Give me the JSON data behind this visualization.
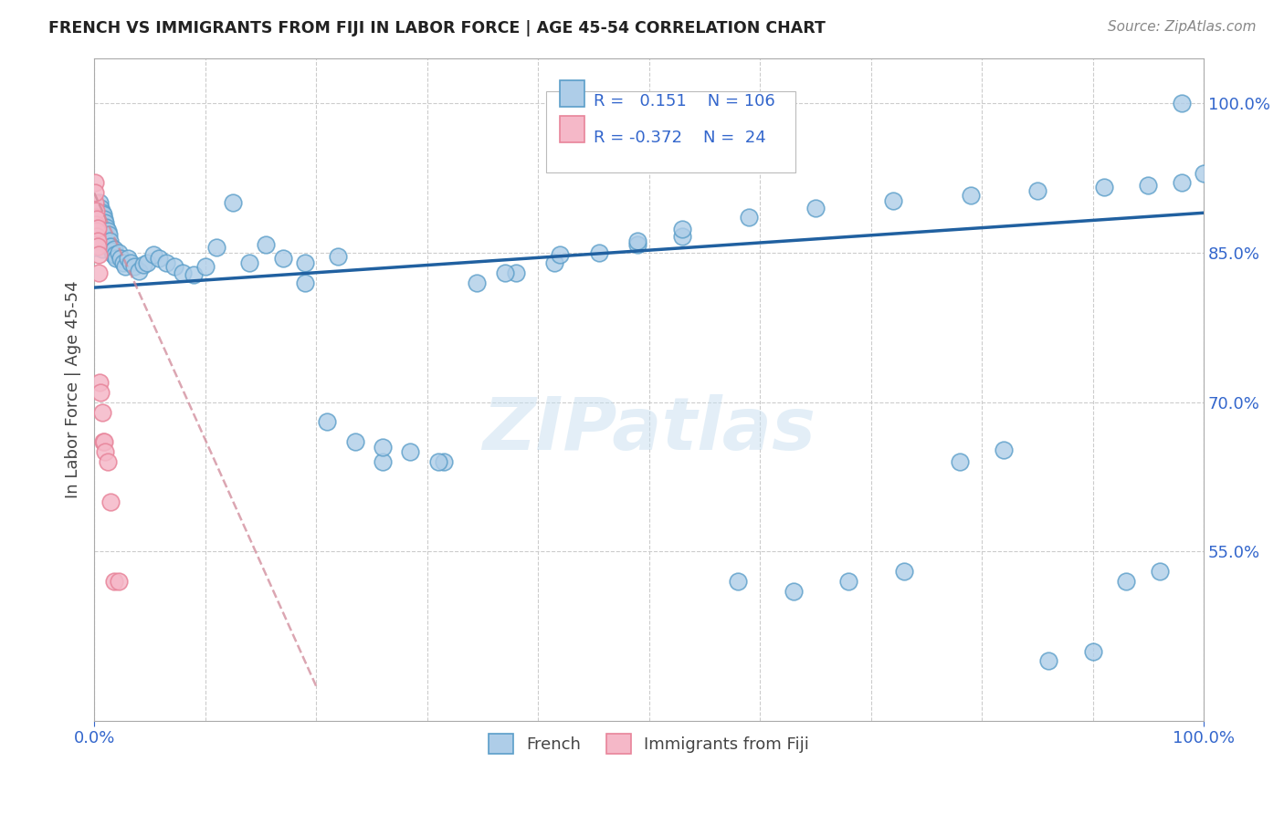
{
  "title": "FRENCH VS IMMIGRANTS FROM FIJI IN LABOR FORCE | AGE 45-54 CORRELATION CHART",
  "source": "Source: ZipAtlas.com",
  "ylabel": "In Labor Force | Age 45-54",
  "xlim": [
    0.0,
    1.0
  ],
  "ylim": [
    0.38,
    1.045
  ],
  "y_ticks_right": [
    0.55,
    0.7,
    0.85,
    1.0
  ],
  "y_tick_labels_right": [
    "55.0%",
    "70.0%",
    "85.0%",
    "100.0%"
  ],
  "legend_r_blue": "0.151",
  "legend_n_blue": "106",
  "legend_r_pink": "-0.372",
  "legend_n_pink": "24",
  "blue_fill": "#aecde8",
  "blue_edge": "#5b9ec9",
  "pink_fill": "#f5b8c8",
  "pink_edge": "#e8849a",
  "trend_blue_color": "#2060a0",
  "trend_pink_color": "#d08898",
  "watermark": "ZIPatlas",
  "french_x": [
    0.001,
    0.001,
    0.002,
    0.002,
    0.002,
    0.003,
    0.003,
    0.003,
    0.003,
    0.004,
    0.004,
    0.004,
    0.005,
    0.005,
    0.005,
    0.005,
    0.006,
    0.006,
    0.006,
    0.007,
    0.007,
    0.007,
    0.007,
    0.008,
    0.008,
    0.008,
    0.009,
    0.009,
    0.009,
    0.01,
    0.01,
    0.011,
    0.011,
    0.012,
    0.012,
    0.013,
    0.013,
    0.014,
    0.015,
    0.016,
    0.017,
    0.018,
    0.019,
    0.02,
    0.022,
    0.024,
    0.026,
    0.028,
    0.03,
    0.033,
    0.036,
    0.04,
    0.044,
    0.048,
    0.053,
    0.058,
    0.065,
    0.072,
    0.08,
    0.09,
    0.1,
    0.11,
    0.125,
    0.14,
    0.155,
    0.17,
    0.19,
    0.21,
    0.235,
    0.26,
    0.285,
    0.315,
    0.345,
    0.38,
    0.415,
    0.455,
    0.49,
    0.53,
    0.58,
    0.63,
    0.68,
    0.73,
    0.78,
    0.82,
    0.86,
    0.9,
    0.93,
    0.96,
    0.98,
    1.0,
    0.37,
    0.42,
    0.49,
    0.53,
    0.59,
    0.65,
    0.72,
    0.79,
    0.85,
    0.91,
    0.95,
    0.98,
    0.19,
    0.22,
    0.26,
    0.31
  ],
  "french_y": [
    0.87,
    0.855,
    0.89,
    0.875,
    0.86,
    0.895,
    0.882,
    0.87,
    0.858,
    0.892,
    0.878,
    0.864,
    0.9,
    0.886,
    0.874,
    0.862,
    0.895,
    0.882,
    0.87,
    0.89,
    0.878,
    0.866,
    0.854,
    0.888,
    0.876,
    0.862,
    0.884,
    0.872,
    0.86,
    0.88,
    0.868,
    0.876,
    0.864,
    0.872,
    0.86,
    0.868,
    0.856,
    0.862,
    0.856,
    0.852,
    0.848,
    0.854,
    0.848,
    0.844,
    0.85,
    0.844,
    0.84,
    0.836,
    0.844,
    0.84,
    0.836,
    0.832,
    0.838,
    0.84,
    0.848,
    0.844,
    0.84,
    0.836,
    0.83,
    0.828,
    0.836,
    0.855,
    0.9,
    0.84,
    0.858,
    0.844,
    0.82,
    0.68,
    0.66,
    0.64,
    0.65,
    0.64,
    0.82,
    0.83,
    0.84,
    0.85,
    0.858,
    0.866,
    0.52,
    0.51,
    0.52,
    0.53,
    0.64,
    0.652,
    0.44,
    0.45,
    0.52,
    0.53,
    1.0,
    0.93,
    0.83,
    0.848,
    0.862,
    0.874,
    0.886,
    0.895,
    0.902,
    0.908,
    0.912,
    0.916,
    0.918,
    0.92,
    0.84,
    0.846,
    0.655,
    0.64
  ],
  "fiji_x": [
    0.0005,
    0.0008,
    0.001,
    0.0012,
    0.0015,
    0.0018,
    0.002,
    0.0022,
    0.0025,
    0.003,
    0.003,
    0.0035,
    0.004,
    0.004,
    0.005,
    0.006,
    0.007,
    0.008,
    0.009,
    0.01,
    0.012,
    0.015,
    0.018,
    0.022
  ],
  "fiji_y": [
    0.92,
    0.9,
    0.91,
    0.886,
    0.892,
    0.878,
    0.884,
    0.872,
    0.866,
    0.875,
    0.862,
    0.856,
    0.848,
    0.83,
    0.72,
    0.71,
    0.69,
    0.66,
    0.66,
    0.65,
    0.64,
    0.6,
    0.52,
    0.52
  ],
  "blue_trend_x0": 0.0,
  "blue_trend_x1": 1.0,
  "blue_trend_y0": 0.815,
  "blue_trend_y1": 0.89,
  "pink_trend_x0": 0.0,
  "pink_trend_x1": 0.2,
  "pink_trend_y0": 0.91,
  "pink_trend_y1": 0.415
}
